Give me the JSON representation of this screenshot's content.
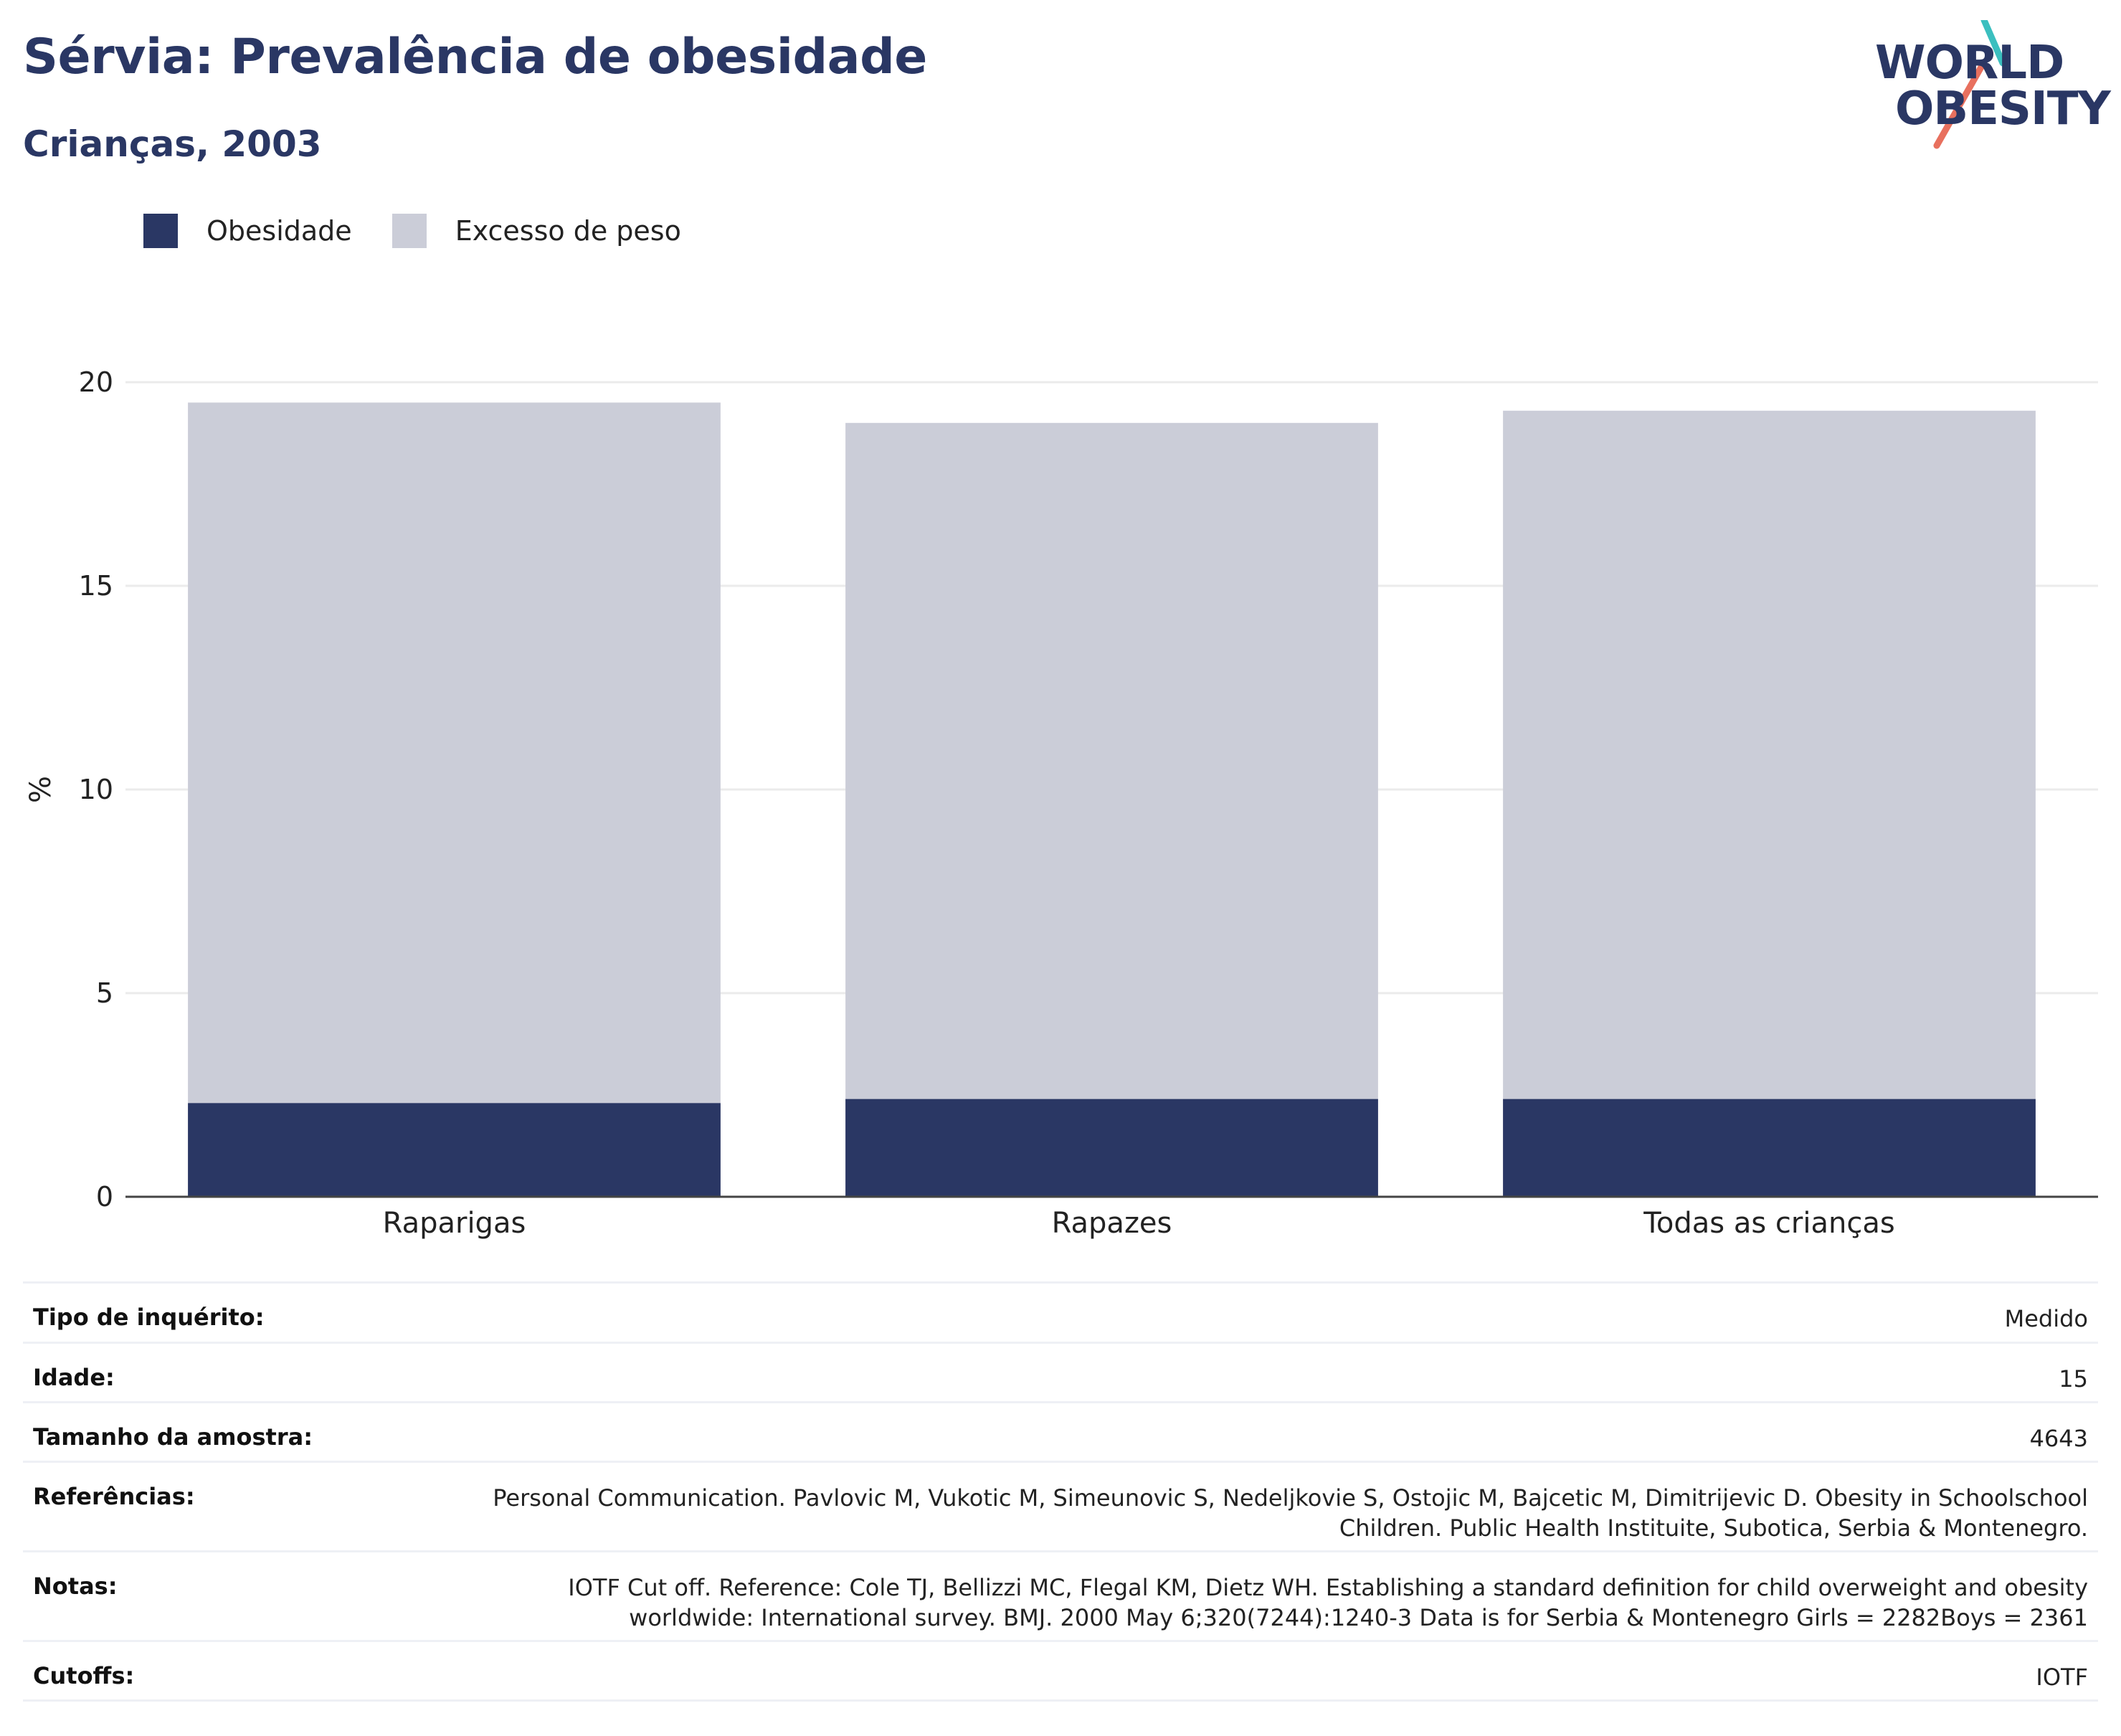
{
  "header": {
    "title": "Sérvia: Prevalência de obesidade",
    "subtitle": "Crianças, 2003"
  },
  "logo": {
    "line1": "WORLD",
    "line2": "OBESITY"
  },
  "legend": [
    {
      "label": "Obesidade",
      "color": "#2a3764"
    },
    {
      "label": "Excesso de peso",
      "color": "#cbcdd8"
    }
  ],
  "chart_data": {
    "type": "bar",
    "stacked": false,
    "categories": [
      "Raparigas",
      "Rapazes",
      "Todas as crianças"
    ],
    "series": [
      {
        "name": "Excesso de peso",
        "values": [
          19.5,
          19.0,
          19.3
        ],
        "color": "#cbcdd8"
      },
      {
        "name": "Obesidade",
        "values": [
          2.3,
          2.4,
          2.4
        ],
        "color": "#2a3764"
      }
    ],
    "ylabel": "%",
    "xlabel": "",
    "ylim": [
      0,
      20
    ],
    "yticks": [
      0,
      5,
      10,
      15,
      20
    ],
    "grid": true,
    "legend_position": "top-left"
  },
  "meta": [
    {
      "label": "Tipo de inquérito:",
      "value": "Medido"
    },
    {
      "label": "Idade:",
      "value": "15"
    },
    {
      "label": "Tamanho da amostra:",
      "value": "4643"
    },
    {
      "label": "Referências:",
      "value": "Personal Communication. Pavlovic M, Vukotic M, Simeunovic S, Nedeljkovie S, Ostojic M, Bajcetic M, Dimitrijevic D. Obesity in Schoolschool Children. Public Health Instituite, Subotica, Serbia & Montenegro."
    },
    {
      "label": "Notas:",
      "value": "IOTF Cut off. Reference: Cole TJ, Bellizzi MC, Flegal KM, Dietz WH. Establishing a standard definition for child overweight and obesity worldwide: International survey. BMJ. 2000 May 6;320(7244):1240-3 Data is for Serbia & Montenegro Girls = 2282Boys = 2361"
    },
    {
      "label": "Cutoffs:",
      "value": "IOTF"
    }
  ]
}
